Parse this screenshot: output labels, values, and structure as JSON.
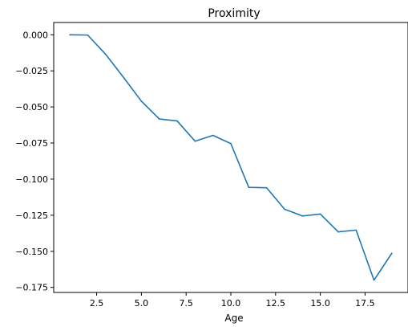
{
  "chart_data": {
    "type": "line",
    "title": "Proximity",
    "xlabel": "Age",
    "ylabel": "",
    "xlim": [
      0.1,
      19.9
    ],
    "ylim": [
      -0.1785,
      0.0085
    ],
    "x_ticks": [
      2.5,
      5.0,
      7.5,
      10.0,
      12.5,
      15.0,
      17.5
    ],
    "x_tick_labels": [
      "2.5",
      "5.0",
      "7.5",
      "10.0",
      "12.5",
      "15.0",
      "17.5"
    ],
    "y_ticks": [
      0.0,
      -0.025,
      -0.05,
      -0.075,
      -0.1,
      -0.125,
      -0.15,
      -0.175
    ],
    "y_tick_labels": [
      "0.000",
      "−0.025",
      "−0.050",
      "−0.075",
      "−0.100",
      "−0.125",
      "−0.150",
      "−0.175"
    ],
    "grid": false,
    "series": [
      {
        "color": "#1f77b4",
        "x": [
          1,
          2,
          3,
          4,
          5,
          6,
          7,
          8,
          9,
          10,
          11,
          12,
          13,
          14,
          15,
          16,
          17,
          18,
          19
        ],
        "y": [
          0.0,
          -0.0002,
          -0.0135,
          -0.0295,
          -0.046,
          -0.0583,
          -0.0597,
          -0.0737,
          -0.0697,
          -0.0754,
          -0.1057,
          -0.106,
          -0.1208,
          -0.1255,
          -0.1242,
          -0.1365,
          -0.1353,
          -0.17,
          -0.1513
        ]
      }
    ]
  }
}
